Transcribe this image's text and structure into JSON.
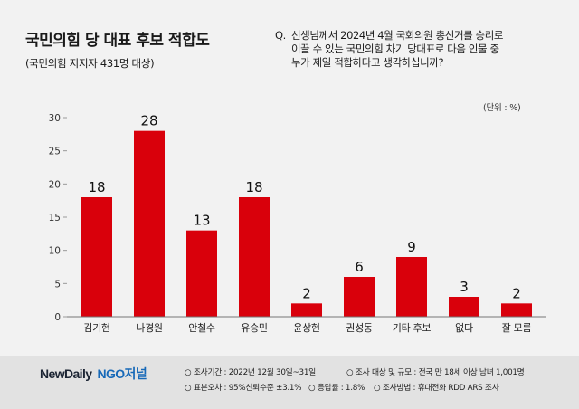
{
  "header": {
    "title": "국민의힘 당 대표 후보 적합도",
    "subtitle": "(국민의힘 지지자 431명 대상)",
    "question_prefix": "Q.",
    "question_lines": [
      "선생님께서 2024년 4월 국회의원 총선거를 승리로",
      "이끌 수 있는 국민의힘 차기 당대표로 다음 인물 중",
      "누가 제일 적합하다고 생각하십니까?"
    ],
    "unit": "(단위 : %)"
  },
  "chart_data": {
    "type": "bar",
    "title": "",
    "xlabel": "",
    "ylabel": "",
    "categories": [
      "김기현",
      "나경원",
      "안철수",
      "유승민",
      "윤상현",
      "권성동",
      "기타 후보",
      "없다",
      "잘 모름"
    ],
    "values": [
      18,
      28,
      13,
      18,
      2,
      6,
      9,
      3,
      2
    ],
    "ylim": [
      0,
      30
    ],
    "yticks": [
      0,
      5,
      10,
      15,
      20,
      25,
      30
    ],
    "bar_color": "#d9000b",
    "grid": false,
    "legend": "none"
  },
  "footer": {
    "logo_primary": "NewDaily",
    "logo_secondary": "NGO",
    "logo_secondary_suffix": "저널",
    "notes": [
      "○ 조사기간 : 2022년 12월 30일~31일",
      "○ 조사 대상 및 규모 : 전국 만 18세 이상 남녀 1,001명",
      "○ 표본오차 : 95%신뢰수준 ±3.1%",
      "○ 응답률 : 1.8%",
      "○ 조사방법 : 휴대전화 RDD ARS 조사"
    ]
  }
}
